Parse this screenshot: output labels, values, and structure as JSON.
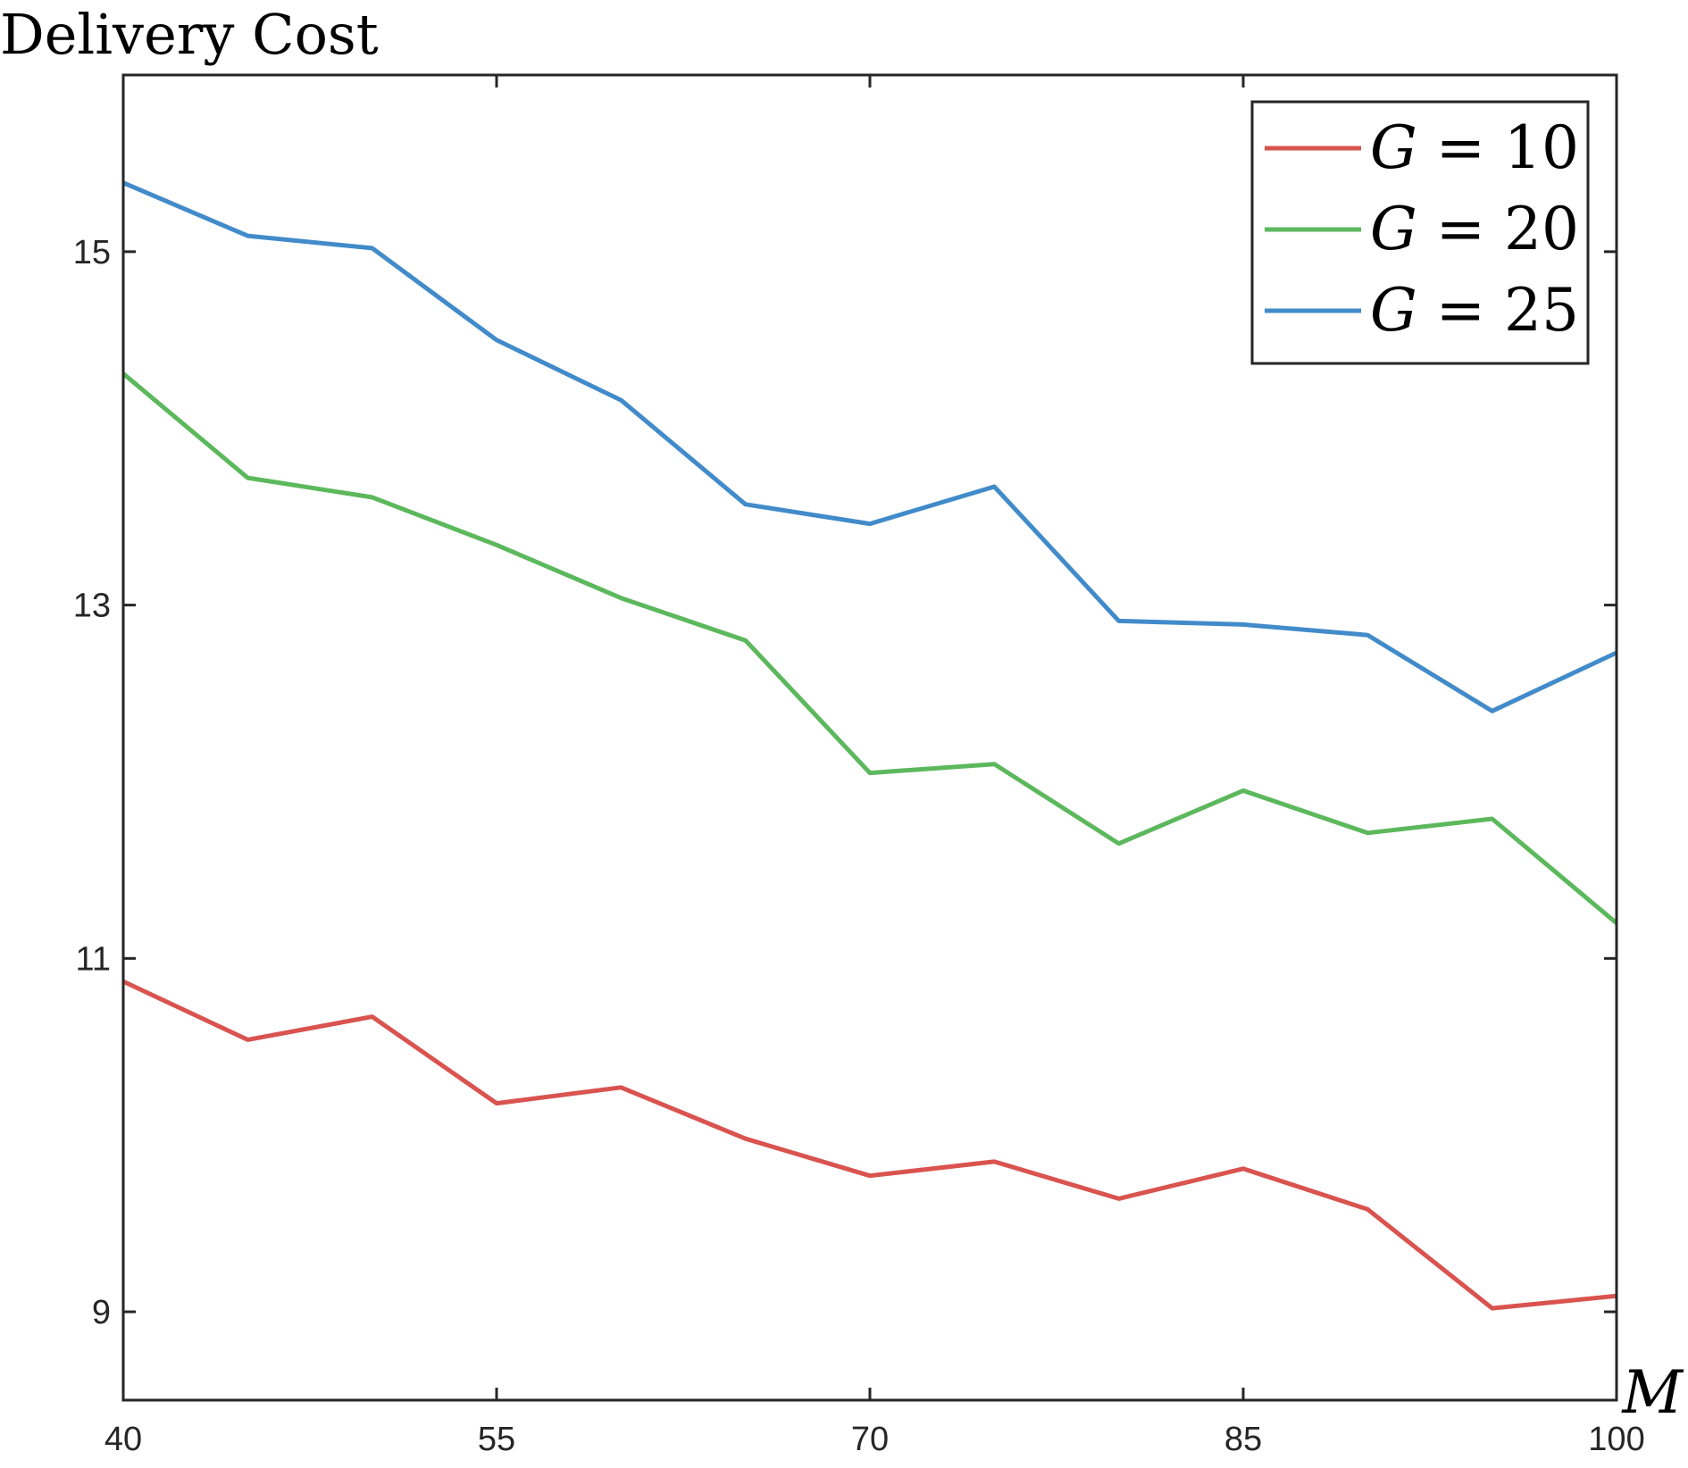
{
  "chart_data": {
    "type": "line",
    "title": "",
    "xlabel": "M",
    "ylabel": "Delivery Cost",
    "x": [
      40,
      45,
      50,
      55,
      60,
      65,
      70,
      75,
      80,
      85,
      90,
      95,
      100
    ],
    "xticks": [
      40,
      55,
      70,
      85,
      100
    ],
    "xtick_labels": [
      "40",
      "55",
      "70",
      "85",
      "100"
    ],
    "yticks": [
      9,
      11,
      13,
      15
    ],
    "ytick_labels": [
      "9",
      "11",
      "13",
      "15"
    ],
    "xlim": [
      40,
      100
    ],
    "ylim": [
      8.5,
      16
    ],
    "grid": false,
    "legend_position": "top-right",
    "series": [
      {
        "name": "G = 10",
        "var": "G",
        "op": "=",
        "num": "10",
        "color": "#d9534f",
        "values": [
          10.87,
          10.54,
          10.67,
          10.18,
          10.27,
          9.98,
          9.77,
          9.85,
          9.64,
          9.81,
          9.58,
          9.02,
          9.09
        ]
      },
      {
        "name": "G = 20",
        "var": "G",
        "op": "=",
        "num": "20",
        "color": "#5cb85c",
        "values": [
          14.31,
          13.72,
          13.61,
          13.34,
          13.04,
          12.8,
          12.05,
          12.1,
          11.65,
          11.95,
          11.71,
          11.79,
          11.2
        ]
      },
      {
        "name": "G = 25",
        "var": "G",
        "op": "=",
        "num": "25",
        "color": "#428bca",
        "values": [
          15.39,
          15.09,
          15.02,
          14.5,
          14.16,
          13.57,
          13.46,
          13.67,
          12.91,
          12.89,
          12.83,
          12.4,
          12.73
        ]
      }
    ]
  }
}
